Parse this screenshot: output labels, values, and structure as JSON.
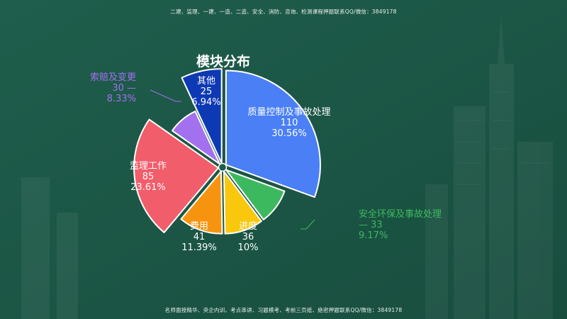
{
  "header_notice": "二建、监理、一建、一造、二造、安全、消防、咨询、检测课程押题联系QQ/微信：3849178",
  "footer_notice": "名师面授精华、央企内训、考点串讲、习题模考、考前三页纸、绝密押题联系QQ/微信：3849178",
  "chart_data": {
    "type": "pie",
    "title": "模块分布",
    "start_angle_deg": 0,
    "direction": "clockwise",
    "center_ring": true,
    "slices": [
      {
        "name": "质量控制及事故处理",
        "value": 110,
        "percent": "30.56%",
        "color": "#4a7ff5",
        "label_color": "#ffffff",
        "label_position": "inside"
      },
      {
        "name": "安全环保及事故处理",
        "value": 33,
        "percent": "9.17%",
        "color": "#3cb95f",
        "label_color": "#3cb95f",
        "label_position": "outside"
      },
      {
        "name": "进度",
        "value": 36,
        "percent": "10%",
        "color": "#f9c70c",
        "label_color": "#ffffff",
        "label_position": "inside"
      },
      {
        "name": "费用",
        "value": 41,
        "percent": "11.39%",
        "color": "#f7940f",
        "label_color": "#ffffff",
        "label_position": "inside"
      },
      {
        "name": "监理工作",
        "value": 85,
        "percent": "23.61%",
        "color": "#f25d6b",
        "label_color": "#ffffff",
        "label_position": "inside"
      },
      {
        "name": "索赔及变更",
        "value": 30,
        "percent": "8.33%",
        "color": "#a370f0",
        "label_color": "#a370f0",
        "label_position": "outside"
      },
      {
        "name": "其他",
        "value": 25,
        "percent": "6.94%",
        "color": "#0e39b5",
        "label_color": "#ffffff",
        "label_position": "inside"
      }
    ]
  }
}
